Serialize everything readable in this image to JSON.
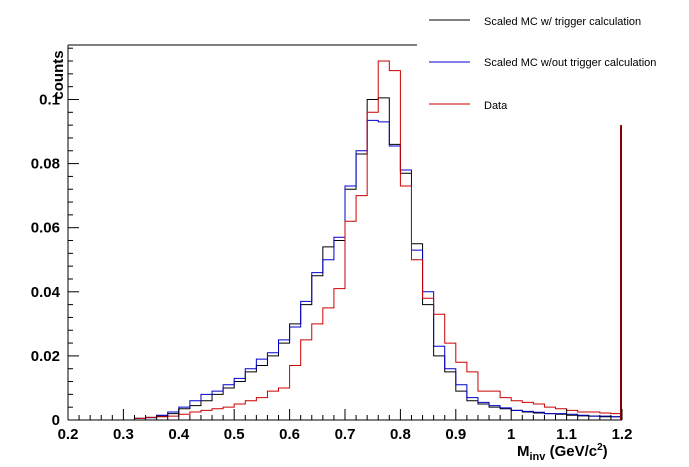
{
  "chart_data": {
    "type": "line",
    "style": "step-histogram",
    "xlabel_main": "M",
    "xlabel_sub": "inv",
    "xlabel_unit_open": " (GeV/c",
    "xlabel_unit_sup": "2",
    "xlabel_unit_close": ")",
    "ylabel": "counts",
    "xlim": [
      0.2,
      1.2
    ],
    "ylim": [
      0,
      0.117
    ],
    "bin_width": 0.02,
    "x_ticks": [
      "0.2",
      "0.3",
      "0.4",
      "0.5",
      "0.6",
      "0.7",
      "0.8",
      "0.9",
      "1",
      "1.1",
      "1.2"
    ],
    "x_tick_values": [
      0.2,
      0.3,
      0.4,
      0.5,
      0.6,
      0.7,
      0.8,
      0.9,
      1.0,
      1.1,
      1.2
    ],
    "y_ticks": [
      "0",
      "0.02",
      "0.04",
      "0.06",
      "0.08",
      "0.1"
    ],
    "y_tick_values": [
      0,
      0.02,
      0.04,
      0.06,
      0.08,
      0.1
    ],
    "legend_position": "top-right",
    "bin_edges": [
      0.32,
      0.34,
      0.36,
      0.38,
      0.4,
      0.42,
      0.44,
      0.46,
      0.48,
      0.5,
      0.52,
      0.54,
      0.56,
      0.58,
      0.6,
      0.62,
      0.64,
      0.66,
      0.68,
      0.7,
      0.72,
      0.74,
      0.76,
      0.78,
      0.8,
      0.82,
      0.84,
      0.86,
      0.88,
      0.9,
      0.92,
      0.94,
      0.96,
      0.98,
      1.0,
      1.02,
      1.04,
      1.06,
      1.08,
      1.1,
      1.12,
      1.14,
      1.16,
      1.18,
      1.2
    ],
    "series": [
      {
        "name": "Scaled MC w/ trigger calculation",
        "color": "#000000",
        "values": [
          0.0005,
          0.0008,
          0.0012,
          0.002,
          0.0035,
          0.0045,
          0.006,
          0.008,
          0.01,
          0.012,
          0.015,
          0.017,
          0.02,
          0.024,
          0.03,
          0.036,
          0.045,
          0.054,
          0.056,
          0.072,
          0.083,
          0.1,
          0.1005,
          0.086,
          0.077,
          0.055,
          0.036,
          0.02,
          0.015,
          0.009,
          0.006,
          0.005,
          0.004,
          0.0035,
          0.003,
          0.0025,
          0.0022,
          0.002,
          0.0018,
          0.0015,
          0.0013,
          0.0012,
          0.001,
          0.001
        ]
      },
      {
        "name": "Scaled MC w/out trigger calculation",
        "color": "#0000cc",
        "values": [
          0.0005,
          0.0007,
          0.0015,
          0.0025,
          0.004,
          0.006,
          0.008,
          0.009,
          0.011,
          0.013,
          0.016,
          0.019,
          0.021,
          0.025,
          0.029,
          0.037,
          0.046,
          0.05,
          0.057,
          0.073,
          0.084,
          0.0935,
          0.093,
          0.0855,
          0.078,
          0.053,
          0.04,
          0.023,
          0.016,
          0.011,
          0.007,
          0.0055,
          0.0045,
          0.0038,
          0.003,
          0.0027,
          0.0024,
          0.002,
          0.002,
          0.0018,
          0.0015,
          0.0012,
          0.0012,
          0.001
        ]
      },
      {
        "name": "Data",
        "color": "#cc0000",
        "values": [
          0.0005,
          0.0008,
          0.001,
          0.0012,
          0.0018,
          0.0025,
          0.003,
          0.0035,
          0.004,
          0.005,
          0.006,
          0.007,
          0.009,
          0.01,
          0.017,
          0.025,
          0.03,
          0.035,
          0.041,
          0.062,
          0.07,
          0.096,
          0.112,
          0.109,
          0.073,
          0.05,
          0.038,
          0.033,
          0.024,
          0.018,
          0.015,
          0.009,
          0.009,
          0.007,
          0.006,
          0.0055,
          0.005,
          0.004,
          0.0035,
          0.003,
          0.0025,
          0.0025,
          0.0022,
          0.002
        ]
      }
    ],
    "edge_spike": {
      "x": 1.2,
      "y": 0.092,
      "color": "#880000"
    }
  }
}
